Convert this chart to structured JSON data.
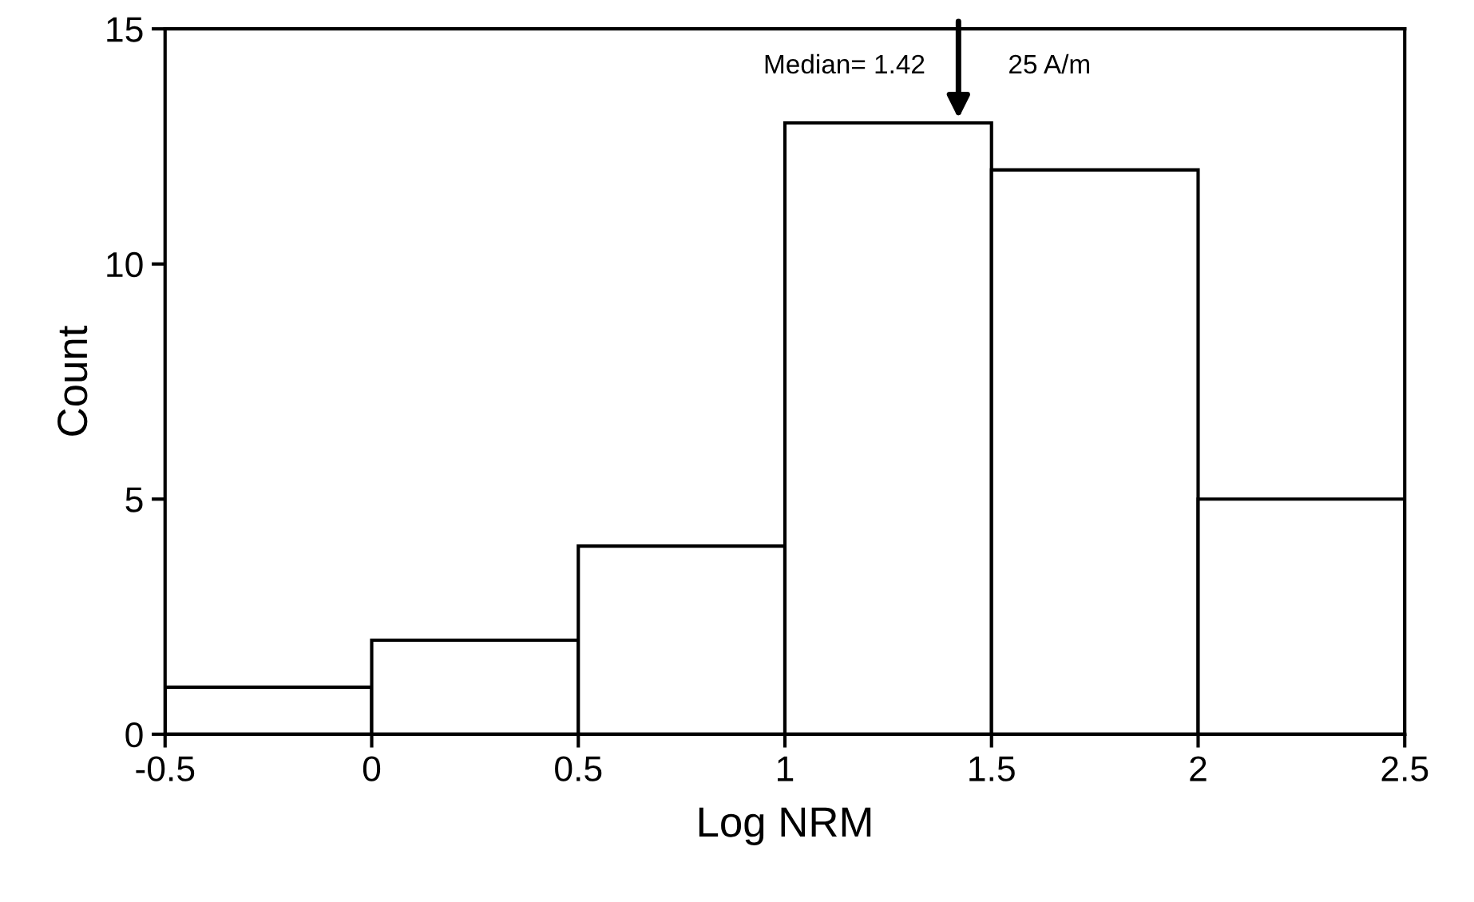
{
  "chart_data": {
    "type": "histogram",
    "xlabel": "Log NRM",
    "ylabel": "Count",
    "bins": [
      -0.5,
      0,
      0.5,
      1,
      1.5,
      2,
      2.5
    ],
    "values": [
      1,
      2,
      4,
      13,
      12,
      5
    ],
    "color": "#ffffff",
    "xlim": [
      -0.5,
      2.5
    ],
    "xticks": [
      -0.5,
      0,
      0.5,
      1,
      1.5,
      2,
      2.5
    ],
    "ylim": [
      0,
      15
    ],
    "yticks": [
      0,
      5,
      10,
      15
    ],
    "grid": false,
    "annotations": [
      {
        "text": "Median= 1.42",
        "x": 1.42,
        "y": 13
      },
      "25 A/m"
    ]
  }
}
